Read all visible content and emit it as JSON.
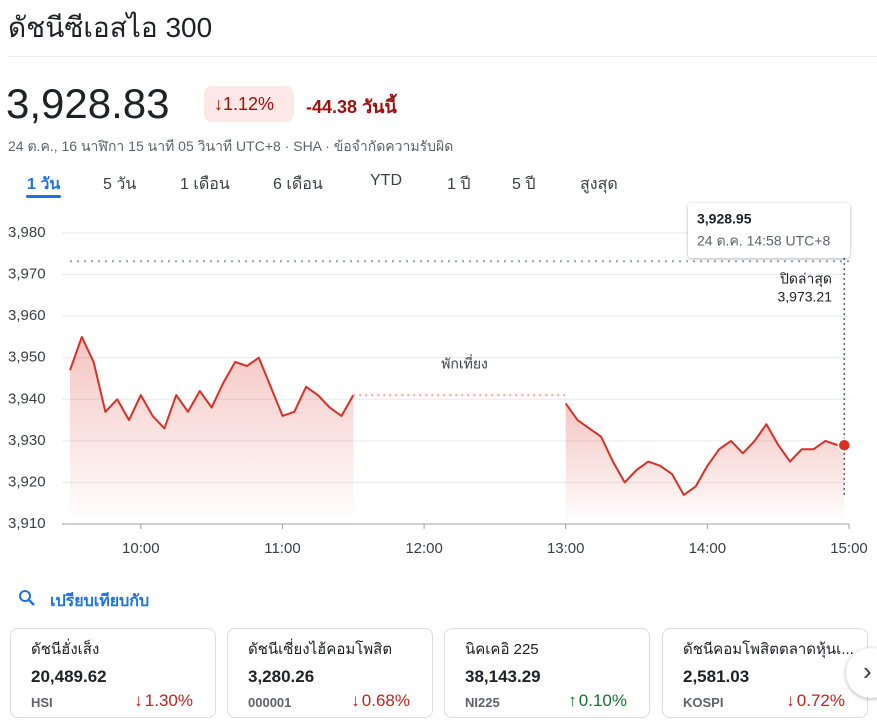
{
  "header": {
    "title": "ดัชนีซีเอสไอ 300",
    "price": "3,928.83",
    "change_percent": "1.12%",
    "change": "-44.38 วันนี้",
    "timestamp": "24 ต.ค., 16 นาฬิกา 15 นาที 05 วินาที UTC+8 · SHA · ",
    "disclaimer": "ข้อจำกัดความรับผิด"
  },
  "tabs": [
    "1 วัน",
    "5 วัน",
    "1 เดือน",
    "6 เดือน",
    "YTD",
    "1 ปี",
    "5 ปี",
    "สูงสุด"
  ],
  "chart_data": {
    "type": "line",
    "x": [
      "09:30",
      "09:35",
      "09:40",
      "09:45",
      "09:50",
      "09:55",
      "10:00",
      "10:05",
      "10:10",
      "10:15",
      "10:20",
      "10:25",
      "10:30",
      "10:35",
      "10:40",
      "10:45",
      "10:50",
      "10:55",
      "11:00",
      "11:05",
      "11:10",
      "11:15",
      "11:20",
      "11:25",
      "11:30",
      "12:00",
      "13:00",
      "13:05",
      "13:10",
      "13:15",
      "13:20",
      "13:25",
      "13:30",
      "13:35",
      "13:40",
      "13:45",
      "13:50",
      "13:55",
      "14:00",
      "14:05",
      "14:10",
      "14:15",
      "14:20",
      "14:25",
      "14:30",
      "14:35",
      "14:40",
      "14:45",
      "14:50",
      "14:55",
      "14:58"
    ],
    "series": [
      {
        "name": "ดัชนีซีเอสไอ 300",
        "color": "#d93025",
        "values": [
          3947,
          3955,
          3949,
          3937,
          3940,
          3935,
          3941,
          3936,
          3933,
          3941,
          3937,
          3942,
          3938,
          3944,
          3949,
          3948,
          3950,
          3943,
          3936,
          3937,
          3943,
          3941,
          3938,
          3936,
          3941,
          null,
          3939,
          3935,
          3933,
          3931,
          3925,
          3920,
          3923,
          3925,
          3924,
          3922,
          3917,
          3919,
          3924,
          3928,
          3930,
          3927,
          3930,
          3934,
          3929,
          3925,
          3928,
          3928,
          3930,
          3929,
          3928.95
        ]
      }
    ],
    "xlim": [
      "09:30",
      "15:00"
    ],
    "xticks": [
      "10:00",
      "11:00",
      "12:00",
      "13:00",
      "14:00",
      "15:00"
    ],
    "ylim": [
      3910,
      3980
    ],
    "yticks": [
      {
        "value": 3910,
        "label": "3,910"
      },
      {
        "value": 3920,
        "label": "3,920"
      },
      {
        "value": 3930,
        "label": "3,930"
      },
      {
        "value": 3940,
        "label": "3,940"
      },
      {
        "value": 3950,
        "label": "3,950"
      },
      {
        "value": 3960,
        "label": "3,960"
      },
      {
        "value": 3970,
        "label": "3,970"
      },
      {
        "value": 3980,
        "label": "3,980"
      }
    ],
    "grid": true,
    "previous_close": {
      "label": "ปิดล่าสุด",
      "value": 3973.21,
      "value_label": "3,973.21"
    },
    "break_label": "พักเที่ยง",
    "tooltip": {
      "value_label": "3,928.95",
      "time": "24 ต.ค. 14:58 UTC+8"
    }
  },
  "compare": {
    "title": "เปรียบเทียบกับ",
    "cards": [
      {
        "name": "ดัชนีฮั่งเส็ง",
        "price": "20,489.62",
        "symbol": "HSI",
        "change": "1.30%",
        "direction": "down"
      },
      {
        "name": "ดัชนีเซี่ยงไฮ้คอมโพสิต",
        "price": "3,280.26",
        "symbol": "000001",
        "change": "0.68%",
        "direction": "down"
      },
      {
        "name": "นิคเคอิ 225",
        "price": "38,143.29",
        "symbol": "NI225",
        "change": "0.10%",
        "direction": "up"
      },
      {
        "name": "ดัชนีคอมโพสิตตลาดหุ้นเ...",
        "price": "2,581.03",
        "symbol": "KOSPI",
        "change": "0.72%",
        "direction": "down"
      }
    ]
  }
}
